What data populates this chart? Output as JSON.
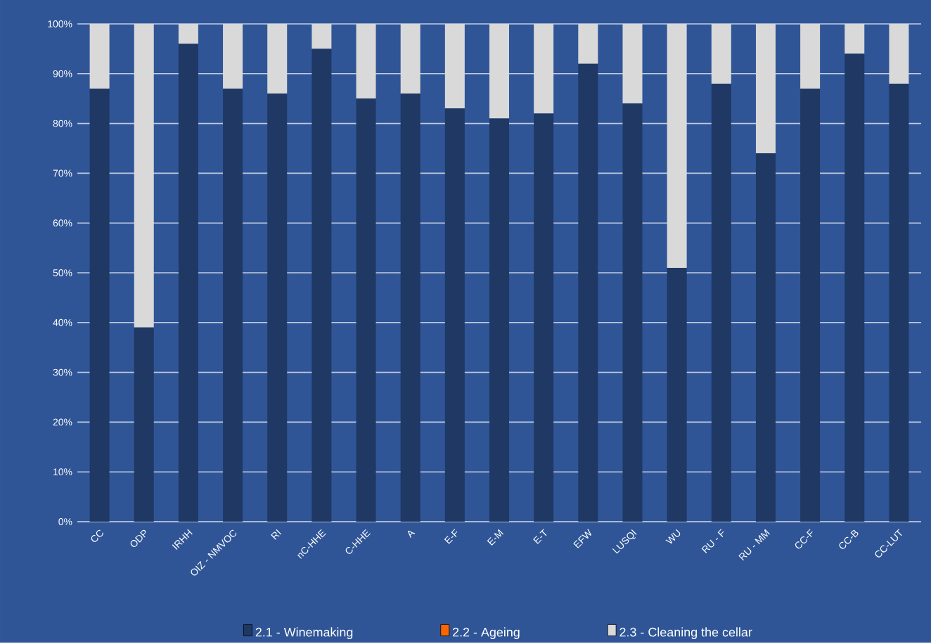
{
  "chart_data": {
    "type": "bar",
    "stacked": true,
    "categories": [
      "CC",
      "ODP",
      "IRHH",
      "OIZ - NMVOC",
      "RI",
      "nC-HHE",
      "C-HHE",
      "A",
      "E-F",
      "E-M",
      "E-T",
      "EFW",
      "LUSQI",
      "WU",
      "RU - F",
      "RU - MM",
      "CC-F",
      "CC-B",
      "CC-LUT"
    ],
    "series": [
      {
        "name": "2.1 - Winemaking",
        "color": "#1f3864",
        "values": [
          87,
          39,
          96,
          87,
          86,
          95,
          85,
          86,
          83,
          81,
          82,
          92,
          84,
          51,
          88,
          74,
          87,
          94,
          88
        ]
      },
      {
        "name": "2.2 - Ageing",
        "color": "#ff6600",
        "values": [
          0,
          0,
          0,
          0,
          0,
          0,
          0,
          0,
          0,
          0,
          0,
          0,
          0,
          0,
          0,
          0,
          0,
          0,
          0
        ]
      },
      {
        "name": "2.3 - Cleaning the cellar",
        "color": "#d9d9d9",
        "values": [
          13,
          61,
          4,
          13,
          14,
          5,
          15,
          14,
          17,
          19,
          18,
          8,
          16,
          49,
          12,
          26,
          13,
          6,
          12
        ]
      }
    ],
    "ylim": [
      0,
      100
    ],
    "yticks": [
      {
        "value": 0,
        "label": "0%"
      },
      {
        "value": 10,
        "label": "10%"
      },
      {
        "value": 20,
        "label": "20%"
      },
      {
        "value": 30,
        "label": "30%"
      },
      {
        "value": 40,
        "label": "40%"
      },
      {
        "value": 50,
        "label": "50%"
      },
      {
        "value": 60,
        "label": "60%"
      },
      {
        "value": 70,
        "label": "70%"
      },
      {
        "value": 80,
        "label": "80%"
      },
      {
        "value": 90,
        "label": "90%"
      },
      {
        "value": 100,
        "label": "100%"
      }
    ],
    "grid": "y",
    "legend": "bottom"
  }
}
